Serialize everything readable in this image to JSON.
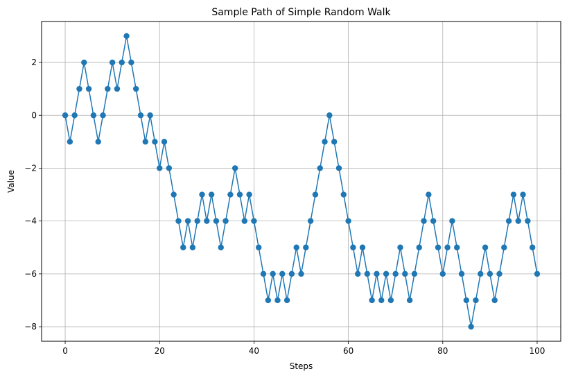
{
  "chart_data": {
    "type": "line",
    "title": "Sample Path of Simple Random Walk",
    "xlabel": "Steps",
    "ylabel": "Value",
    "xlim": [
      -5,
      105
    ],
    "ylim": [
      -8.55,
      3.55
    ],
    "xticks": [
      0,
      20,
      40,
      60,
      80,
      100
    ],
    "yticks": [
      -8,
      -6,
      -4,
      -2,
      0,
      2
    ],
    "ytick_labels": [
      "−8",
      "−6",
      "−4",
      "−2",
      "0",
      "2"
    ],
    "grid": true,
    "marker": "circle",
    "color": "#1f77b4",
    "series": [
      {
        "x": [
          0,
          1,
          2,
          3,
          4,
          5,
          6,
          7,
          8,
          9,
          10,
          11,
          12,
          13,
          14,
          15,
          16,
          17,
          18,
          19,
          20,
          21,
          22,
          23,
          24,
          25,
          26,
          27,
          28,
          29,
          30,
          31,
          32,
          33,
          34,
          35,
          36,
          37,
          38,
          39,
          40,
          41,
          42,
          43,
          44,
          45,
          46,
          47,
          48,
          49,
          50,
          51,
          52,
          53,
          54,
          55,
          56,
          57,
          58,
          59,
          60,
          61,
          62,
          63,
          64,
          65,
          66,
          67,
          68,
          69,
          70,
          71,
          72,
          73,
          74,
          75,
          76,
          77,
          78,
          79,
          80,
          81,
          82,
          83,
          84,
          85,
          86,
          87,
          88,
          89,
          90,
          91,
          92,
          93,
          94,
          95,
          96,
          97,
          98,
          99,
          100
        ],
        "values": [
          0,
          -1,
          0,
          1,
          2,
          1,
          0,
          -1,
          0,
          1,
          2,
          1,
          2,
          3,
          2,
          1,
          0,
          -1,
          0,
          -1,
          -2,
          -1,
          -2,
          -3,
          -4,
          -5,
          -4,
          -5,
          -4,
          -3,
          -4,
          -3,
          -4,
          -5,
          -4,
          -3,
          -2,
          -3,
          -4,
          -3,
          -4,
          -5,
          -6,
          -7,
          -6,
          -7,
          -6,
          -7,
          -6,
          -5,
          -6,
          -5,
          -4,
          -3,
          -2,
          -1,
          0,
          -1,
          -2,
          -3,
          -4,
          -5,
          -6,
          -5,
          -6,
          -7,
          -6,
          -7,
          -6,
          -7,
          -6,
          -5,
          -6,
          -7,
          -6,
          -5,
          -4,
          -3,
          -4,
          -5,
          -6,
          -5,
          -4,
          -5,
          -6,
          -7,
          -8,
          -7,
          -6,
          -5,
          -6,
          -7,
          -6,
          -5,
          -4,
          -3,
          -4,
          -3,
          -4,
          -5,
          -6
        ]
      }
    ]
  }
}
